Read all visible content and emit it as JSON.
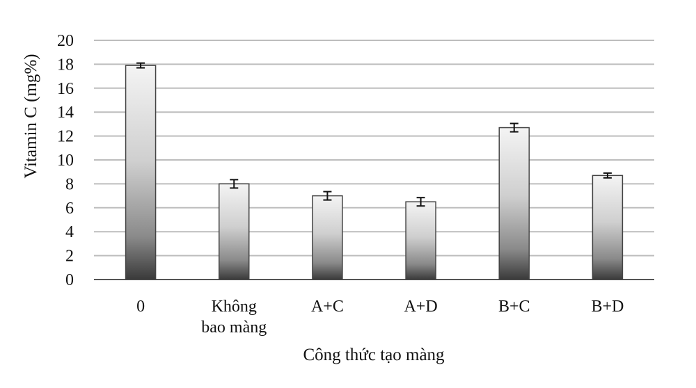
{
  "chart_data": {
    "type": "bar",
    "categories": [
      [
        "0"
      ],
      [
        "Không",
        "bao màng"
      ],
      [
        "A+C"
      ],
      [
        "A+D"
      ],
      [
        "B+C"
      ],
      [
        "B+D"
      ]
    ],
    "values": [
      17.9,
      8.0,
      7.0,
      6.5,
      12.7,
      8.7
    ],
    "errors": [
      0.2,
      0.35,
      0.35,
      0.35,
      0.35,
      0.2
    ],
    "xlabel": "Công thức tạo màng",
    "ylabel": "Vitamin C (mg%)",
    "ylim": [
      0,
      20
    ],
    "yticks": [
      0,
      2,
      4,
      6,
      8,
      10,
      12,
      14,
      16,
      18,
      20
    ],
    "grid": true,
    "colors": {
      "bar_light": "#f2f2f2",
      "bar_dark": "#333333",
      "grid": "#bdbdbd",
      "axis": "#555555"
    }
  }
}
